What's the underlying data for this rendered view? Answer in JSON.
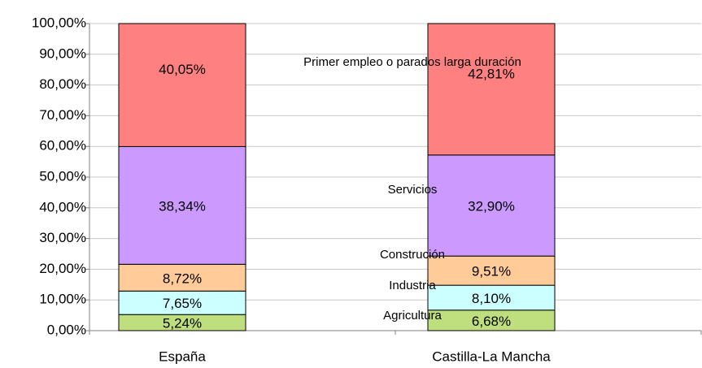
{
  "chart_data": {
    "type": "stacked_bar",
    "categories": [
      "España",
      "Castilla-La Mancha"
    ],
    "series": [
      {
        "name": "Agricultura",
        "color": "#bfdf7f",
        "values": [
          5.24,
          6.68
        ],
        "value_labels": [
          "5,24%",
          "6,68%"
        ]
      },
      {
        "name": "Industria",
        "color": "#ccffff",
        "values": [
          7.65,
          8.1
        ],
        "value_labels": [
          "7,65%",
          "8,10%"
        ]
      },
      {
        "name": "Construción",
        "color": "#ffcc99",
        "values": [
          8.72,
          9.51
        ],
        "value_labels": [
          "8,72%",
          "9,51%"
        ]
      },
      {
        "name": "Servicios",
        "color": "#cc99ff",
        "values": [
          38.34,
          32.9
        ],
        "value_labels": [
          "38,34%",
          "32,90%"
        ]
      },
      {
        "name": "Primer empleo o parados larga duración",
        "color": "#ff8080",
        "values": [
          40.05,
          42.81
        ],
        "value_labels": [
          "40,05%",
          "42,81%"
        ]
      }
    ],
    "ylim": [
      0,
      100
    ],
    "yticks": [
      {
        "value": 0,
        "label": "0,00%"
      },
      {
        "value": 10,
        "label": "10,00%"
      },
      {
        "value": 20,
        "label": "20,00%"
      },
      {
        "value": 30,
        "label": "30,00%"
      },
      {
        "value": 40,
        "label": "40,00%"
      },
      {
        "value": 50,
        "label": "50,00%"
      },
      {
        "value": 60,
        "label": "60,00%"
      },
      {
        "value": 70,
        "label": "70,00%"
      },
      {
        "value": 80,
        "label": "80,00%"
      },
      {
        "value": 90,
        "label": "90,00%"
      },
      {
        "value": 100,
        "label": "100,00%"
      }
    ],
    "grid": true
  }
}
